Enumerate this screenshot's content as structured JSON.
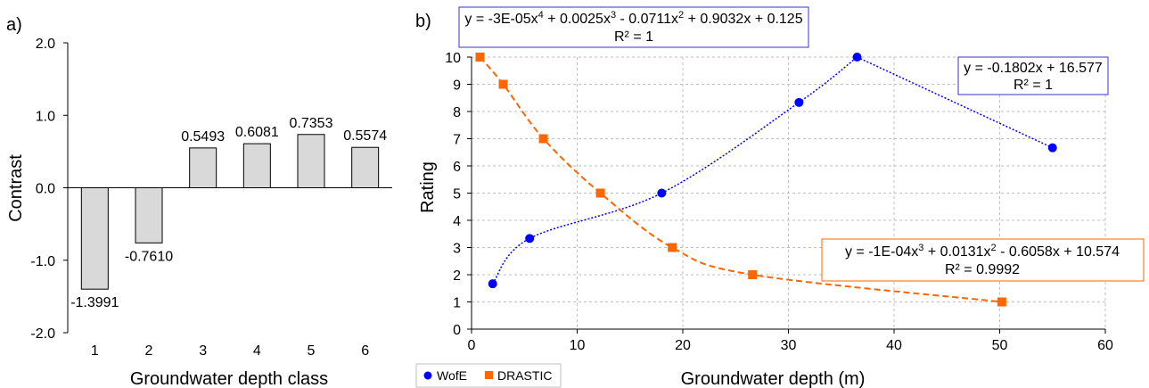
{
  "chart_data": [
    {
      "type": "bar",
      "panel_label": "a)",
      "title": "",
      "xlabel": "Groundwater depth class",
      "ylabel": "Contrast",
      "categories": [
        "1",
        "2",
        "3",
        "4",
        "5",
        "6"
      ],
      "values": [
        -1.3991,
        -0.761,
        0.5493,
        0.6081,
        0.7353,
        0.5574
      ],
      "value_labels": [
        "-1.3991",
        "-0.7610",
        "0.5493",
        "0.6081",
        "0.7353",
        "0.5574"
      ],
      "ylim": [
        -2.0,
        2.0
      ],
      "yticks": [
        "-2.0",
        "-1.0",
        "0.0",
        "1.0",
        "2.0"
      ],
      "bar_color": "#d9d9d9",
      "grid": false
    },
    {
      "type": "scatter",
      "panel_label": "b)",
      "title": "",
      "xlabel": "Groundwater depth (m)",
      "ylabel": "Rating",
      "xlim": [
        0,
        60
      ],
      "ylim": [
        0,
        10
      ],
      "xticks": [
        0,
        10,
        20,
        30,
        40,
        50,
        60
      ],
      "yticks": [
        0,
        1,
        2,
        3,
        4,
        5,
        6,
        7,
        8,
        9,
        10
      ],
      "grid": true,
      "legend_position": "bottom-left",
      "series": [
        {
          "name": "WofE",
          "color": "#0000ff",
          "marker": "circle",
          "x": [
            2,
            5.5,
            18,
            31,
            36.5,
            55
          ],
          "y": [
            1.667,
            3.333,
            5,
            8.333,
            10,
            6.667
          ]
        },
        {
          "name": "DRASTIC",
          "color": "#ff6600",
          "marker": "square",
          "x": [
            0.8,
            3,
            6.8,
            12.2,
            19,
            26.6,
            50.2
          ],
          "y": [
            10,
            9,
            7,
            5,
            3,
            2,
            1
          ]
        }
      ],
      "trendlines": [
        {
          "series": "WofE",
          "type": "polynomial",
          "equation_line1": "y = -3E-05x",
          "sup1": "4",
          "equation_rest1": " + 0.0025x",
          "sup2": "3",
          "equation_rest2": " - 0.0711x",
          "sup3": "2",
          "equation_rest3": " + 0.9032x + 0.125",
          "r2": "R² = 1",
          "coefficients": [
            -3e-05,
            0.0025,
            -0.0711,
            0.9032,
            0.125
          ],
          "x_range": [
            2,
            36.5
          ]
        },
        {
          "series": "WofE",
          "type": "linear",
          "equation": "y = -0.1802x + 16.577",
          "r2": "R² = 1",
          "coefficients": [
            -0.1802,
            16.577
          ],
          "x_range": [
            36.5,
            55
          ]
        },
        {
          "series": "DRASTIC",
          "type": "polynomial",
          "equation_line1": "y = -1E-04x",
          "sup1": "3",
          "equation_rest1": " + 0.0131x",
          "sup2": "2",
          "equation_rest2": " - 0.6058x + 10.574",
          "r2": "R² = 0.9992",
          "coefficients": [
            -0.0001,
            0.0131,
            -0.6058,
            10.574
          ],
          "x_range": [
            0.8,
            50.2
          ]
        }
      ]
    }
  ]
}
